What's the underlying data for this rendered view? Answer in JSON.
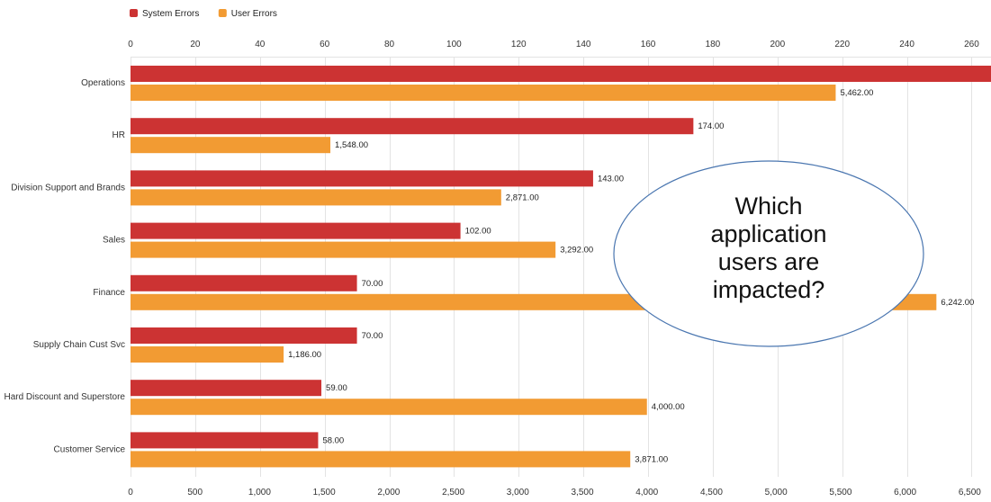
{
  "chart_data": {
    "type": "bar",
    "orientation": "horizontal",
    "categories": [
      "Operations",
      "HR",
      "Division Support and Brands",
      "Sales",
      "Finance",
      "Supply Chain Cust Svc",
      "Hard Discount and Superstore",
      "Customer Service"
    ],
    "series": [
      {
        "name": "System Errors",
        "axis": "top",
        "color": "#cc3333",
        "values": [
          268,
          174,
          143,
          102,
          70,
          70,
          59,
          58
        ],
        "labels": [
          "",
          "174.00",
          "143.00",
          "102.00",
          "70.00",
          "70.00",
          "59.00",
          "58.00"
        ]
      },
      {
        "name": "User Errors",
        "axis": "bottom",
        "color": "#f29b33",
        "values": [
          5462,
          1548,
          2871,
          3292,
          6242,
          1186,
          4000,
          3871
        ],
        "labels": [
          "5,462.00",
          "1,548.00",
          "2,871.00",
          "3,292.00",
          "6,242.00",
          "1,186.00",
          "4,000.00",
          "3,871.00"
        ]
      }
    ],
    "top_axis": {
      "range": [
        0,
        266
      ],
      "ticks": [
        0,
        20,
        40,
        60,
        80,
        100,
        120,
        140,
        160,
        180,
        200,
        220,
        240,
        260
      ],
      "tick_labels": [
        "0",
        "20",
        "40",
        "60",
        "80",
        "100",
        "120",
        "140",
        "160",
        "180",
        "200",
        "220",
        "240",
        "260"
      ]
    },
    "bottom_axis": {
      "range": [
        0,
        6665
      ],
      "ticks": [
        0,
        500,
        1000,
        1500,
        2000,
        2500,
        3000,
        3500,
        4000,
        4500,
        5000,
        5500,
        6000,
        6500
      ],
      "tick_labels": [
        "0",
        "500",
        "1,000",
        "1,500",
        "2,000",
        "2,500",
        "3,000",
        "3,500",
        "4,000",
        "4,500",
        "5,000",
        "5,500",
        "6,000",
        "6,500"
      ]
    },
    "legend": {
      "position": "top-left"
    },
    "grid": true,
    "annotation": {
      "lines": [
        "Which",
        "application",
        "users are",
        "impacted?"
      ],
      "shape": "ellipse"
    }
  }
}
